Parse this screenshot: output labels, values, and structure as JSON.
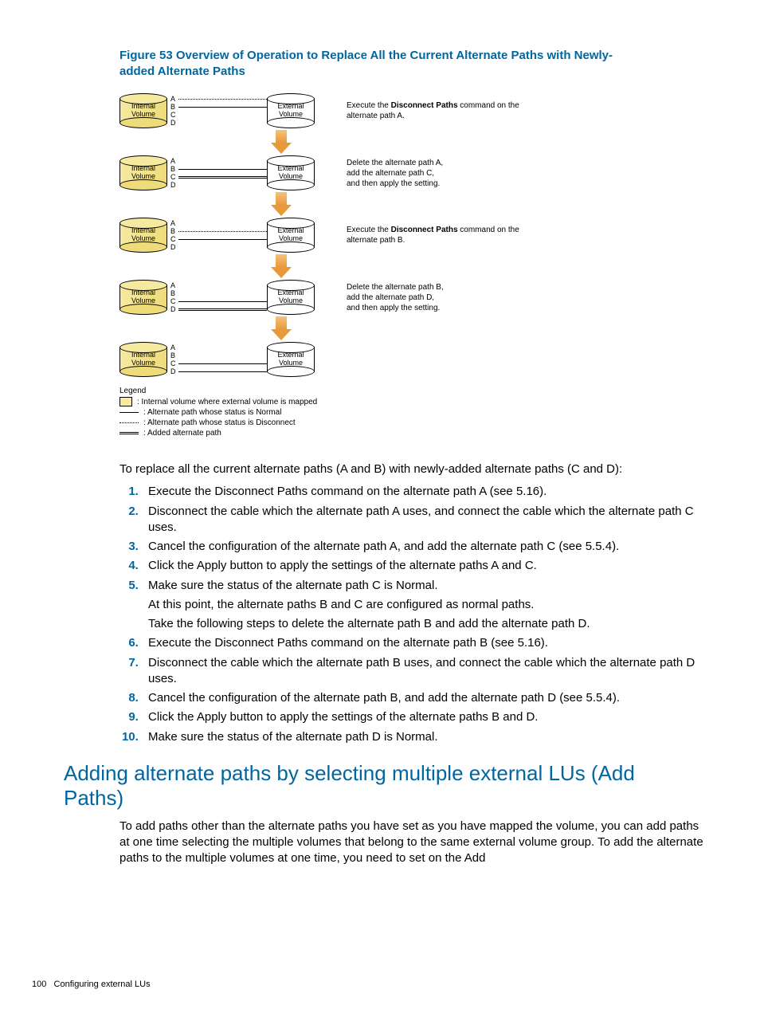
{
  "figure": {
    "label": "Figure 53 Overview of Operation to Replace All the Current Alternate Paths with Newly-added Alternate Paths",
    "internal_label": "Internal\nVolume",
    "external_label": "External\nVolume",
    "rows": [
      {
        "paths": [
          {
            "ltr": "A",
            "style": "dotted"
          },
          {
            "ltr": "B",
            "style": "solid"
          },
          {
            "ltr": "C",
            "style": ""
          },
          {
            "ltr": "D",
            "style": ""
          }
        ],
        "caption_pre": "Execute the ",
        "caption_bold": "Disconnect Paths",
        "caption_post": " command on the alternate path A."
      },
      {
        "paths": [
          {
            "ltr": "A",
            "style": ""
          },
          {
            "ltr": "B",
            "style": "solid"
          },
          {
            "ltr": "C",
            "style": "double"
          },
          {
            "ltr": "D",
            "style": ""
          }
        ],
        "caption_pre": "Delete the alternate path A,",
        "caption_lines": [
          "add the alternate path C,",
          "and then apply the setting."
        ]
      },
      {
        "paths": [
          {
            "ltr": "A",
            "style": ""
          },
          {
            "ltr": "B",
            "style": "dotted"
          },
          {
            "ltr": "C",
            "style": "solid"
          },
          {
            "ltr": "D",
            "style": ""
          }
        ],
        "caption_pre": "Execute the ",
        "caption_bold": "Disconnect Paths",
        "caption_post": " command on the alternate path B."
      },
      {
        "paths": [
          {
            "ltr": "A",
            "style": ""
          },
          {
            "ltr": "B",
            "style": ""
          },
          {
            "ltr": "C",
            "style": "solid"
          },
          {
            "ltr": "D",
            "style": "double"
          }
        ],
        "caption_pre": "Delete the alternate path B,",
        "caption_lines": [
          "add the alternate path D,",
          "and then apply the setting."
        ]
      },
      {
        "paths": [
          {
            "ltr": "A",
            "style": ""
          },
          {
            "ltr": "B",
            "style": ""
          },
          {
            "ltr": "C",
            "style": "solid"
          },
          {
            "ltr": "D",
            "style": "solid"
          }
        ],
        "caption_pre": "",
        "caption_lines": []
      }
    ],
    "legend_title": "Legend",
    "legend_items": [
      {
        "type": "sq",
        "text": ": Internal volume where external volume is mapped"
      },
      {
        "type": "solid",
        "text": ": Alternate path whose status is Normal"
      },
      {
        "type": "dotted",
        "text": ": Alternate path whose status is Disconnect"
      },
      {
        "type": "double",
        "text": ": Added alternate path"
      }
    ]
  },
  "intro": "To replace all the current alternate paths (A and B) with newly-added alternate paths (C and D):",
  "steps": [
    {
      "text": "Execute the Disconnect Paths command on the alternate path A (see 5.16)."
    },
    {
      "text": "Disconnect the cable which the alternate path A uses, and connect the cable which the alternate path C uses."
    },
    {
      "text": "Cancel the configuration of the alternate path A, and add the alternate path C (see 5.5.4)."
    },
    {
      "text": "Click the Apply button to apply the settings of the alternate paths A and C."
    },
    {
      "text": "Make sure the status of the alternate path C is Normal.",
      "sub": [
        "At this point, the alternate paths B and C are configured as normal paths.",
        "Take the following steps to delete the alternate path B and add the alternate path D."
      ]
    },
    {
      "text": "Execute the Disconnect Paths command on the alternate path B (see 5.16)."
    },
    {
      "text": "Disconnect the cable which the alternate path B uses, and connect the cable which the alternate path D uses."
    },
    {
      "text": "Cancel the configuration of the alternate path B, and add the alternate path D (see 5.5.4)."
    },
    {
      "text": "Click the Apply button to apply the settings of the alternate paths B and D."
    },
    {
      "text": "Make sure the status of the alternate path D is Normal."
    }
  ],
  "section_heading": "Adding alternate paths by selecting multiple external LUs (Add Paths)",
  "section_body": "To add paths other than the alternate paths you have set as you have mapped the volume, you can add paths at one time selecting the multiple volumes that belong to the same external volume group. To add the alternate paths to the multiple volumes at one time, you need to set on the Add",
  "footer": {
    "page": "100",
    "title": "Configuring external LUs"
  }
}
